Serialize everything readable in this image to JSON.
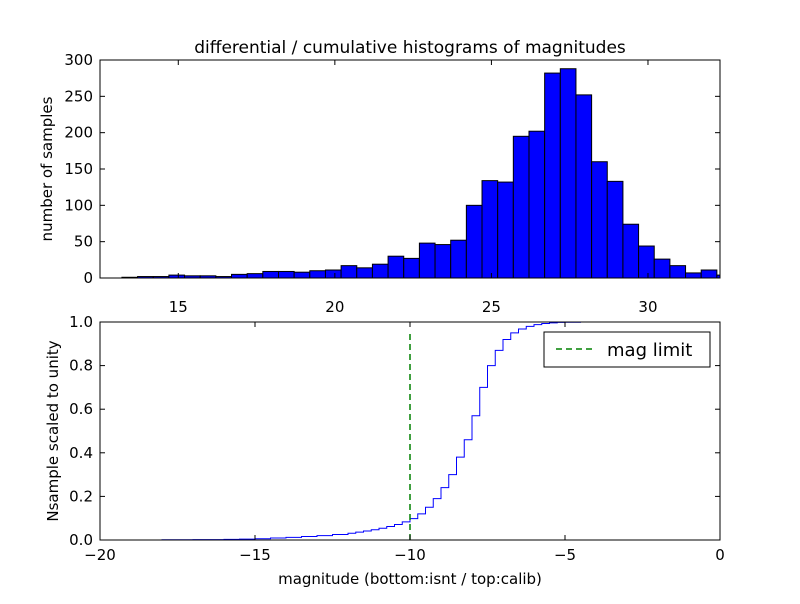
{
  "figure": {
    "title": "differential / cumulative histograms of magnitudes"
  },
  "chart_data": [
    {
      "type": "bar",
      "subtype": "histogram",
      "title": "differential / cumulative histograms of magnitudes",
      "xlabel": "",
      "ylabel": "number of samples",
      "xlim": [
        12.5,
        32.3
      ],
      "ylim": [
        0,
        300
      ],
      "xticks": [
        15,
        20,
        25,
        30
      ],
      "yticks": [
        0,
        50,
        100,
        150,
        200,
        250,
        300
      ],
      "xtick_position": "top-of-lower-axes",
      "grid": false,
      "color": "#0000ff",
      "edgecolor": "#000000",
      "bin_width": 0.5,
      "bins": [
        {
          "left": 13.2,
          "value": 1
        },
        {
          "left": 13.7,
          "value": 2
        },
        {
          "left": 14.2,
          "value": 2
        },
        {
          "left": 14.7,
          "value": 4
        },
        {
          "left": 15.2,
          "value": 3
        },
        {
          "left": 15.7,
          "value": 3
        },
        {
          "left": 16.2,
          "value": 2
        },
        {
          "left": 16.7,
          "value": 5
        },
        {
          "left": 17.2,
          "value": 6
        },
        {
          "left": 17.7,
          "value": 9
        },
        {
          "left": 18.2,
          "value": 9
        },
        {
          "left": 18.7,
          "value": 8
        },
        {
          "left": 19.2,
          "value": 10
        },
        {
          "left": 19.7,
          "value": 11
        },
        {
          "left": 20.2,
          "value": 17
        },
        {
          "left": 20.7,
          "value": 14
        },
        {
          "left": 21.2,
          "value": 19
        },
        {
          "left": 21.7,
          "value": 30
        },
        {
          "left": 22.2,
          "value": 27
        },
        {
          "left": 22.7,
          "value": 48
        },
        {
          "left": 23.2,
          "value": 46
        },
        {
          "left": 23.7,
          "value": 52
        },
        {
          "left": 24.2,
          "value": 100
        },
        {
          "left": 24.7,
          "value": 134
        },
        {
          "left": 25.2,
          "value": 132
        },
        {
          "left": 25.7,
          "value": 195
        },
        {
          "left": 26.2,
          "value": 202
        },
        {
          "left": 26.7,
          "value": 282
        },
        {
          "left": 27.2,
          "value": 288
        },
        {
          "left": 27.7,
          "value": 252
        },
        {
          "left": 28.2,
          "value": 160
        },
        {
          "left": 28.7,
          "value": 133
        },
        {
          "left": 29.2,
          "value": 74
        },
        {
          "left": 29.7,
          "value": 44
        },
        {
          "left": 30.2,
          "value": 26
        },
        {
          "left": 30.7,
          "value": 17
        },
        {
          "left": 31.2,
          "value": 7
        },
        {
          "left": 31.7,
          "value": 11
        },
        {
          "left": 32.2,
          "value": 4
        }
      ]
    },
    {
      "type": "line",
      "subtype": "step",
      "title": "",
      "xlabel": "magnitude (bottom:isnt / top:calib)",
      "ylabel": "Nsample scaled to unity",
      "xlim": [
        -20,
        0
      ],
      "ylim": [
        0,
        1.0
      ],
      "xticks": [
        -20,
        -15,
        -10,
        -5,
        0
      ],
      "yticks": [
        0.0,
        0.2,
        0.4,
        0.6,
        0.8,
        1.0
      ],
      "grid": false,
      "legend": "top-right",
      "series": [
        {
          "name": "",
          "color": "#0000ff",
          "style": "step",
          "x": [
            -20.0,
            -18.0,
            -17.0,
            -16.0,
            -15.5,
            -15.0,
            -14.5,
            -14.0,
            -13.5,
            -13.0,
            -12.5,
            -12.0,
            -11.75,
            -11.5,
            -11.25,
            -11.0,
            -10.75,
            -10.5,
            -10.25,
            -10.0,
            -9.75,
            -9.5,
            -9.25,
            -9.0,
            -8.75,
            -8.5,
            -8.25,
            -8.0,
            -7.75,
            -7.5,
            -7.25,
            -7.0,
            -6.75,
            -6.5,
            -6.25,
            -6.0,
            -5.75,
            -5.5,
            -5.25,
            -5.0,
            -4.5,
            -4.0,
            -3.0,
            -2.0,
            -1.0,
            0.0
          ],
          "y": [
            0.0,
            0.001,
            0.002,
            0.003,
            0.004,
            0.006,
            0.009,
            0.012,
            0.016,
            0.02,
            0.025,
            0.031,
            0.036,
            0.041,
            0.047,
            0.054,
            0.062,
            0.071,
            0.083,
            0.098,
            0.12,
            0.15,
            0.19,
            0.24,
            0.3,
            0.38,
            0.46,
            0.57,
            0.7,
            0.8,
            0.87,
            0.92,
            0.95,
            0.968,
            0.98,
            0.988,
            0.993,
            0.996,
            0.998,
            0.999,
            1.0,
            1.0,
            1.0,
            1.0,
            1.0,
            1.0
          ]
        },
        {
          "name": "mag limit",
          "color": "#008000",
          "style": "dashed-vertical",
          "x": [
            -10.0,
            -10.0
          ],
          "y": [
            0.0,
            0.95
          ]
        }
      ]
    }
  ]
}
